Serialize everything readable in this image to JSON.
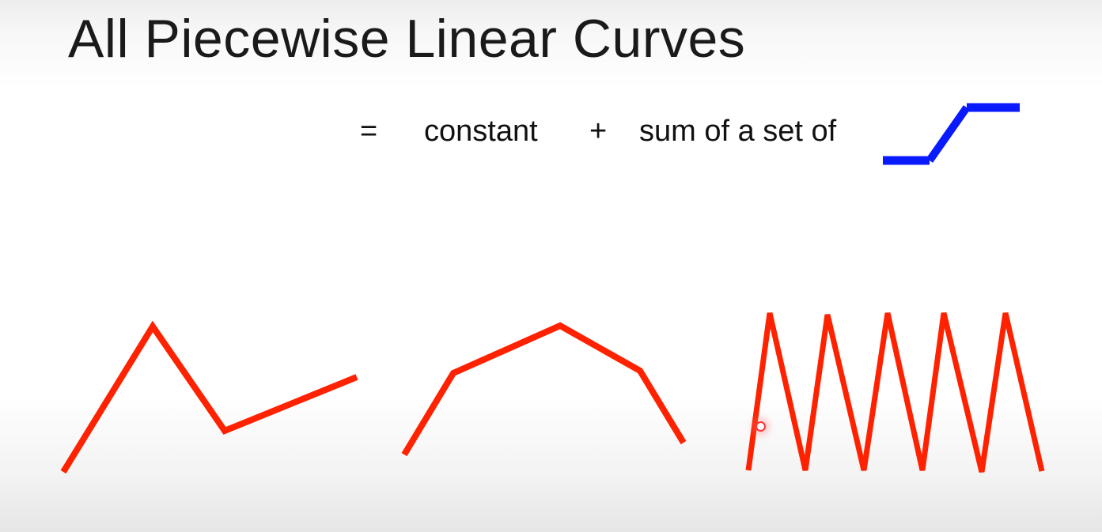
{
  "slide": {
    "title": "All Piecewise Linear Curves"
  },
  "equation": {
    "equals": "=",
    "term1": "constant",
    "plus": "+",
    "term2": "sum of a set of",
    "basis_icon": "blue-hard-sigmoid-step-icon"
  },
  "colors": {
    "curve": "#ff2200",
    "basis": "#0a1aff",
    "text": "#111111"
  },
  "curves": [
    {
      "name": "piecewise-linear-curve-1",
      "segments": 3
    },
    {
      "name": "piecewise-linear-curve-2",
      "segments": 4
    },
    {
      "name": "zigzag-curve-3",
      "segments": 10
    }
  ]
}
